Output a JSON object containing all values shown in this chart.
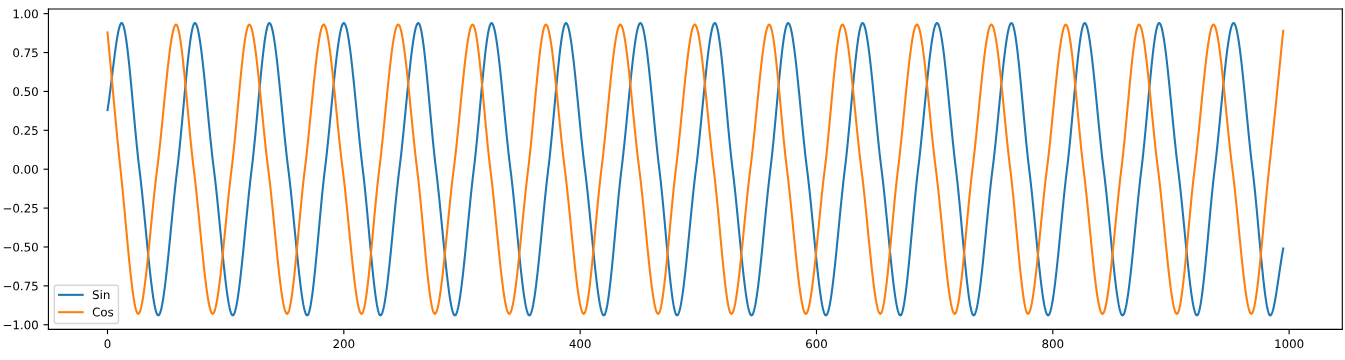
{
  "chart_data": {
    "type": "line",
    "xlim": [
      -50,
      1045
    ],
    "ylim": [
      -1.03,
      1.03
    ],
    "xticks": [
      0,
      200,
      400,
      600,
      800,
      1000
    ],
    "yticks": [
      {
        "value": -1,
        "label": "−1.00"
      },
      {
        "value": -0.75,
        "label": "−0.75"
      },
      {
        "value": -0.5,
        "label": "−0.50"
      },
      {
        "value": -0.25,
        "label": "−0.25"
      },
      {
        "value": 0,
        "label": "0.00"
      },
      {
        "value": 0.25,
        "label": "0.25"
      },
      {
        "value": 0.5,
        "label": "0.50"
      },
      {
        "value": 0.75,
        "label": "0.75"
      },
      {
        "value": 1,
        "label": "1.00"
      }
    ],
    "grid": false,
    "legend": "bottom left",
    "marker": "none",
    "line_style": "solid",
    "series": [
      {
        "name": "Sin",
        "color": "#1f77b4",
        "x": [
          0,
          12,
          27,
          43,
          59,
          74,
          90,
          106,
          122,
          137,
          153,
          169,
          184,
          200,
          216,
          231,
          247,
          263,
          278,
          294,
          310,
          325,
          341,
          357,
          373,
          388,
          404,
          420,
          435,
          451,
          467,
          482,
          498,
          514,
          529,
          545,
          561,
          576,
          592,
          608,
          624,
          639,
          655,
          671,
          686,
          702,
          718,
          733,
          749,
          765,
          780,
          796,
          812,
          827,
          843,
          859,
          875,
          890,
          906,
          922,
          937,
          953,
          969,
          984,
          995
        ],
        "values": [
          0.38,
          0.94,
          0,
          -0.94,
          0,
          0.94,
          0,
          -0.94,
          0,
          0.94,
          0,
          -0.94,
          0,
          0.94,
          0,
          -0.94,
          0,
          0.94,
          0,
          -0.94,
          0,
          0.94,
          0,
          -0.94,
          0,
          0.94,
          0,
          -0.94,
          0,
          0.94,
          0,
          -0.94,
          0,
          0.94,
          0,
          -0.94,
          0,
          0.94,
          0,
          -0.94,
          0,
          0.94,
          0,
          -0.94,
          0,
          0.94,
          0,
          -0.94,
          0,
          0.94,
          0,
          -0.94,
          0,
          0.94,
          0,
          -0.94,
          0,
          0.94,
          0,
          -0.94,
          0,
          0.94,
          0,
          -0.94,
          -0.51
        ]
      },
      {
        "name": "Cos",
        "color": "#ff7f0e",
        "x": [
          0,
          11,
          26,
          42,
          58,
          73,
          89,
          105,
          120,
          136,
          152,
          167,
          183,
          199,
          215,
          230,
          246,
          262,
          277,
          293,
          309,
          324,
          340,
          356,
          371,
          387,
          403,
          418,
          434,
          450,
          466,
          481,
          497,
          513,
          528,
          544,
          560,
          575,
          591,
          607,
          622,
          638,
          654,
          669,
          685,
          701,
          717,
          732,
          748,
          764,
          779,
          795,
          811,
          826,
          842,
          858,
          873,
          889,
          905,
          920,
          936,
          952,
          968,
          983,
          995
        ],
        "values": [
          0.88,
          0,
          -0.93,
          0,
          0.93,
          0,
          -0.93,
          0,
          0.93,
          0,
          -0.93,
          0,
          0.93,
          0,
          -0.93,
          0,
          0.93,
          0,
          -0.93,
          0,
          0.93,
          0,
          -0.93,
          0,
          0.93,
          0,
          -0.93,
          0,
          0.93,
          0,
          -0.93,
          0,
          0.93,
          0,
          -0.93,
          0,
          0.93,
          0,
          -0.93,
          0,
          0.93,
          0,
          -0.93,
          0,
          0.93,
          0,
          -0.93,
          0,
          0.93,
          0,
          -0.93,
          0,
          0.93,
          0,
          -0.93,
          0,
          0.93,
          0,
          -0.93,
          0,
          0.93,
          0,
          -0.93,
          0,
          0.89
        ]
      }
    ]
  }
}
